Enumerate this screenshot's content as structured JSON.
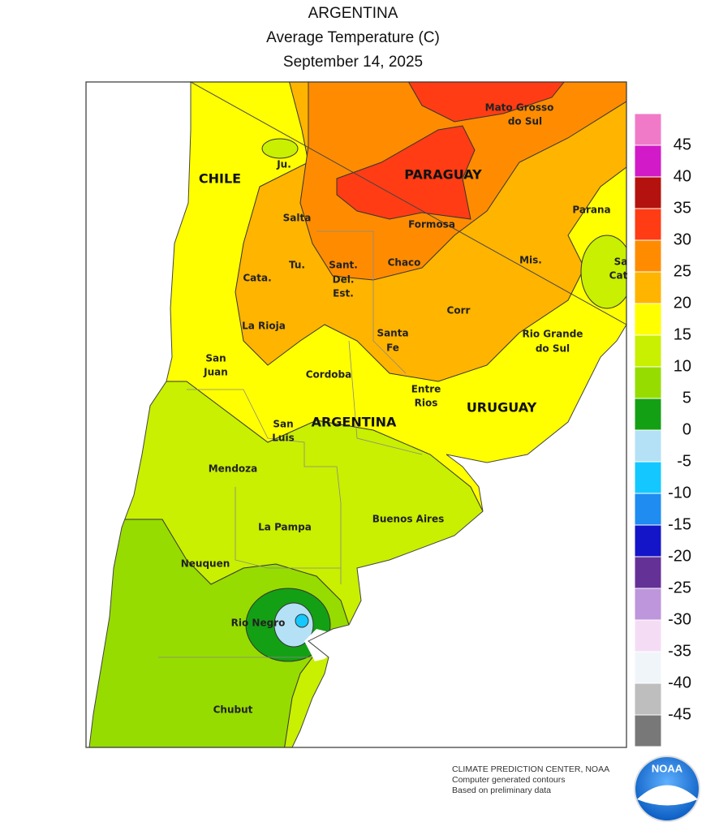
{
  "header": {
    "title": "ARGENTINA",
    "subtitle": "Average Temperature (C)",
    "date": "September 14, 2025"
  },
  "map": {
    "labels": [
      {
        "text": "CHILE",
        "kind": "country"
      },
      {
        "text": "Ju.",
        "kind": "place"
      },
      {
        "text": "PARAGUAY",
        "kind": "country"
      },
      {
        "text": "Mato Grosso",
        "kind": "place"
      },
      {
        "text": "do Sul",
        "kind": "place"
      },
      {
        "text": "Salta",
        "kind": "place"
      },
      {
        "text": "Formosa",
        "kind": "place"
      },
      {
        "text": "Parana",
        "kind": "place"
      },
      {
        "text": "Tu.",
        "kind": "place"
      },
      {
        "text": "Sant.",
        "kind": "place"
      },
      {
        "text": "Del.",
        "kind": "place"
      },
      {
        "text": "Est.",
        "kind": "place"
      },
      {
        "text": "Chaco",
        "kind": "place"
      },
      {
        "text": "Mis.",
        "kind": "place"
      },
      {
        "text": "Sa",
        "kind": "place"
      },
      {
        "text": "Cat",
        "kind": "place"
      },
      {
        "text": "Cata.",
        "kind": "place"
      },
      {
        "text": "Corr",
        "kind": "place"
      },
      {
        "text": "La Rioja",
        "kind": "place"
      },
      {
        "text": "Santa",
        "kind": "place"
      },
      {
        "text": "Fe",
        "kind": "place"
      },
      {
        "text": "Rio Grande",
        "kind": "place"
      },
      {
        "text": "do Sul",
        "kind": "place"
      },
      {
        "text": "San",
        "kind": "place"
      },
      {
        "text": "Juan",
        "kind": "place"
      },
      {
        "text": "Cordoba",
        "kind": "place"
      },
      {
        "text": "Entre",
        "kind": "place"
      },
      {
        "text": "Rios",
        "kind": "place"
      },
      {
        "text": "URUGUAY",
        "kind": "country"
      },
      {
        "text": "San",
        "kind": "place"
      },
      {
        "text": "Luis",
        "kind": "place"
      },
      {
        "text": "ARGENTINA",
        "kind": "country"
      },
      {
        "text": "Mendoza",
        "kind": "place"
      },
      {
        "text": "Buenos Aires",
        "kind": "place"
      },
      {
        "text": "La Pampa",
        "kind": "place"
      },
      {
        "text": "Neuquen",
        "kind": "place"
      },
      {
        "text": "Rio Negro",
        "kind": "place"
      },
      {
        "text": "Chubut",
        "kind": "place"
      }
    ]
  },
  "legend": {
    "ticks": [
      45,
      40,
      35,
      30,
      25,
      20,
      15,
      10,
      5,
      0,
      -5,
      -10,
      -15,
      -20,
      -25,
      -30,
      -35,
      -40,
      -45
    ],
    "colors": [
      "#f07ac8",
      "#d21ac8",
      "#b4120e",
      "#ff3c14",
      "#ff8c00",
      "#ffb400",
      "#ffff00",
      "#c8f000",
      "#96dc00",
      "#14a014",
      "#b4e1f5",
      "#14c8ff",
      "#1e8cf0",
      "#1414c8",
      "#643296",
      "#be96dc",
      "#f5dcf5",
      "#f0f5fa",
      "#bebebe",
      "#787878"
    ]
  },
  "footer": {
    "lines": [
      "CLIMATE PREDICTION CENTER, NOAA",
      "Computer generated contours",
      "Based on preliminary data"
    ],
    "logo": "NOAA"
  }
}
